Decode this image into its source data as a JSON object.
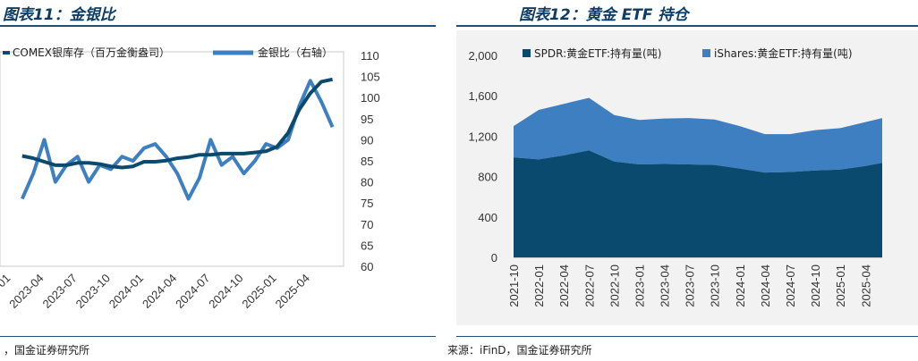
{
  "figures": [
    {
      "title": "图表11：金银比",
      "source": "，国金证券研究所"
    },
    {
      "title": "图表12：黄金 ETF 持仓",
      "source": "来源：iFinD，国金证券研究所"
    }
  ],
  "colors": {
    "dark_navy": "#0b4a6f",
    "mid_blue": "#3d7fc1",
    "rule": "#1f4e79",
    "panel": "#f2f2f2"
  },
  "chart_data": [
    {
      "type": "line",
      "series": [
        {
          "name": "COMEX银库存（百万金衡盎司）",
          "axis": "left",
          "color": "#0b4a6f",
          "x": [
            "2023-02",
            "2023-03",
            "2023-04",
            "2023-05",
            "2023-06",
            "2023-07",
            "2023-08",
            "2023-09",
            "2023-10",
            "2023-11",
            "2023-12",
            "2024-01",
            "2024-02",
            "2024-03",
            "2024-04",
            "2024-05",
            "2024-06",
            "2024-07",
            "2024-08",
            "2024-09",
            "2024-10",
            "2024-11",
            "2024-12",
            "2025-01",
            "2025-02",
            "2025-03",
            "2025-04",
            "2025-05",
            "2025-06"
          ],
          "values": [
            68,
            67,
            65.5,
            64,
            64,
            65,
            65,
            64.5,
            63.5,
            63,
            63.5,
            65.5,
            65.5,
            66,
            67,
            67.5,
            68.5,
            68.5,
            69,
            69,
            69,
            69.5,
            70,
            72,
            78,
            88,
            95,
            100,
            101
          ]
        },
        {
          "name": "金银比（右轴）",
          "axis": "right",
          "color": "#3d7fc1",
          "x": [
            "2023-02",
            "2023-03",
            "2023-04",
            "2023-05",
            "2023-06",
            "2023-07",
            "2023-08",
            "2023-09",
            "2023-10",
            "2023-11",
            "2023-12",
            "2024-01",
            "2024-02",
            "2024-03",
            "2024-04",
            "2024-05",
            "2024-06",
            "2024-07",
            "2024-08",
            "2024-09",
            "2024-10",
            "2024-11",
            "2024-12",
            "2025-01",
            "2025-02",
            "2025-03",
            "2025-04",
            "2025-05",
            "2025-06"
          ],
          "values": [
            76,
            82,
            90,
            80,
            84,
            86,
            80,
            84,
            83,
            86,
            85,
            88,
            89,
            86,
            82,
            76,
            81,
            90,
            84,
            86,
            82,
            85,
            89,
            88,
            90,
            98,
            104,
            99,
            93
          ]
        }
      ],
      "x_tick_labels": [
        "-01",
        "2023-04",
        "2023-07",
        "2023-10",
        "2024-01",
        "2024-04",
        "2024-07",
        "2024-10",
        "2025-01",
        "2025-04"
      ],
      "y_right_ticks": [
        60,
        65,
        70,
        75,
        80,
        85,
        90,
        95,
        100,
        105,
        110
      ],
      "y_left_range": [
        20.5,
        111.3
      ],
      "y_right_range": [
        60,
        110
      ],
      "grid": false,
      "legend_position": "top"
    },
    {
      "type": "area",
      "stacked": true,
      "x_tick_labels": [
        "2021-10",
        "2022-01",
        "2022-04",
        "2022-07",
        "2022-10",
        "2023-01",
        "2023-04",
        "2023-07",
        "2023-10",
        "2024-01",
        "2024-04",
        "2024-07",
        "2024-10",
        "2025-01",
        "2025-04"
      ],
      "x": [
        "2021-10",
        "2022-01",
        "2022-04",
        "2022-07",
        "2022-10",
        "2023-01",
        "2023-04",
        "2023-07",
        "2023-10",
        "2024-01",
        "2024-04",
        "2024-07",
        "2024-10",
        "2025-01",
        "2025-04",
        "2025-06"
      ],
      "series": [
        {
          "name": "SPDR:黄金ETF:持有量(吨)",
          "color": "#0b4a6f",
          "values": [
            990,
            970,
            1010,
            1060,
            950,
            920,
            925,
            920,
            915,
            880,
            840,
            845,
            860,
            870,
            905,
            935
          ]
        },
        {
          "name": "iShares:黄金ETF:持有量(吨)",
          "color": "#3d7fc1",
          "values": [
            310,
            490,
            510,
            520,
            460,
            440,
            450,
            460,
            450,
            420,
            380,
            375,
            400,
            410,
            435,
            445
          ]
        }
      ],
      "y_ticks": [
        0,
        400,
        800,
        1200,
        1600,
        2000
      ],
      "ylim": [
        0,
        2000
      ],
      "grid": false,
      "legend_position": "top"
    }
  ]
}
